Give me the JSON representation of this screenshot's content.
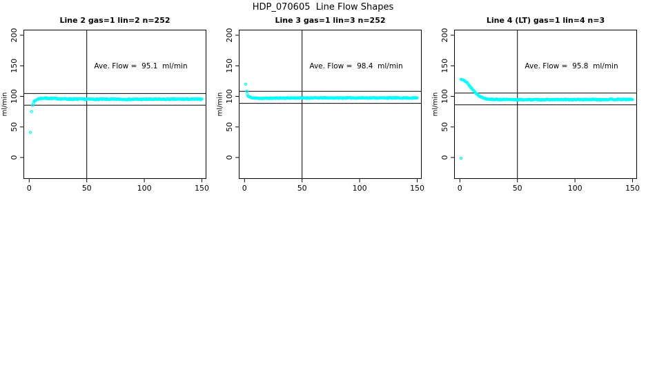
{
  "page_title": "HDP_070605  Line Flow Shapes",
  "chart_data": {
    "type": "scatter",
    "layout": "1 row x 3 panels",
    "title": "HDP_070605  Line Flow Shapes",
    "ylabel": "ml/min",
    "xlabel": "",
    "point_color": "#00FFFF",
    "line_color": "#000000",
    "x_ticks": [
      0,
      50,
      100,
      150
    ],
    "y_ticks": [
      0,
      50,
      100,
      150,
      200
    ],
    "xlim": [
      -5,
      155
    ],
    "ylim": [
      -35,
      210
    ],
    "vline_x": 50,
    "hline_rule": "average flow plus/minus 10 percent",
    "grid": false,
    "legend": "none",
    "panels": [
      {
        "title": "Line 2 gas=1 lin=2 n=252",
        "annotation": "Ave. Flow =  95.1  ml/min",
        "ave_flow": 95.1,
        "n": 252,
        "hlines": [
          104.6,
          85.6
        ],
        "outliers": [
          [
            1,
            41
          ],
          [
            2,
            75
          ]
        ],
        "profile": [
          [
            3,
            86
          ],
          [
            4,
            90.5
          ],
          [
            5,
            92.5
          ],
          [
            6,
            94
          ],
          [
            7,
            95
          ],
          [
            8,
            95.8
          ],
          [
            10,
            96.6
          ],
          [
            13,
            97
          ],
          [
            18,
            96.8
          ],
          [
            25,
            96.1
          ],
          [
            35,
            95.6
          ],
          [
            50,
            95.3
          ],
          [
            80,
            95.2
          ],
          [
            120,
            95.3
          ],
          [
            150,
            95.4
          ]
        ],
        "noise": 0.9,
        "points": 250,
        "seed": 7
      },
      {
        "title": "Line 3 gas=1 lin=3 n=252",
        "annotation": "Ave. Flow =  98.4  ml/min",
        "ave_flow": 98.4,
        "n": 252,
        "hlines": [
          108.2,
          88.6
        ],
        "outliers": [
          [
            1,
            120
          ],
          [
            2,
            108.5
          ],
          [
            2.5,
            104
          ]
        ],
        "profile": [
          [
            3,
            100.5
          ],
          [
            4,
            99.2
          ],
          [
            5,
            98.4
          ],
          [
            6,
            97.9
          ],
          [
            8,
            97.4
          ],
          [
            12,
            96.9
          ],
          [
            18,
            96.8
          ],
          [
            30,
            97.2
          ],
          [
            50,
            97.4
          ],
          [
            100,
            97.5
          ],
          [
            150,
            97.4
          ]
        ],
        "noise": 0.7,
        "points": 250,
        "seed": 11
      },
      {
        "title": "Line 4 (LT) gas=1 lin=4 n=3",
        "annotation": "Ave. Flow =  95.8  ml/min",
        "ave_flow": 95.8,
        "n": 3,
        "hlines": [
          105.4,
          86.2
        ],
        "outliers": [
          [
            1,
            -1
          ]
        ],
        "profile": [
          [
            1,
            127.5
          ],
          [
            2,
            128
          ],
          [
            3,
            127.5
          ],
          [
            4,
            126.3
          ],
          [
            5,
            124.6
          ],
          [
            6,
            122.6
          ],
          [
            7,
            120.5
          ],
          [
            8,
            118.3
          ],
          [
            9,
            116
          ],
          [
            10,
            113.7
          ],
          [
            11,
            111.4
          ],
          [
            12,
            109.2
          ],
          [
            13,
            107.2
          ],
          [
            14,
            105.3
          ],
          [
            15,
            103.6
          ],
          [
            16,
            102.1
          ],
          [
            17,
            100.7
          ],
          [
            18,
            99.5
          ],
          [
            19,
            98.5
          ],
          [
            20,
            97.7
          ],
          [
            22,
            96.6
          ],
          [
            24,
            95.9
          ],
          [
            27,
            95.3
          ],
          [
            30,
            95
          ],
          [
            40,
            94.7
          ],
          [
            60,
            94.6
          ],
          [
            90,
            94.7
          ],
          [
            120,
            94.8
          ],
          [
            150,
            95
          ]
        ],
        "noise": 0.8,
        "points": 260,
        "seed": 13
      }
    ]
  }
}
